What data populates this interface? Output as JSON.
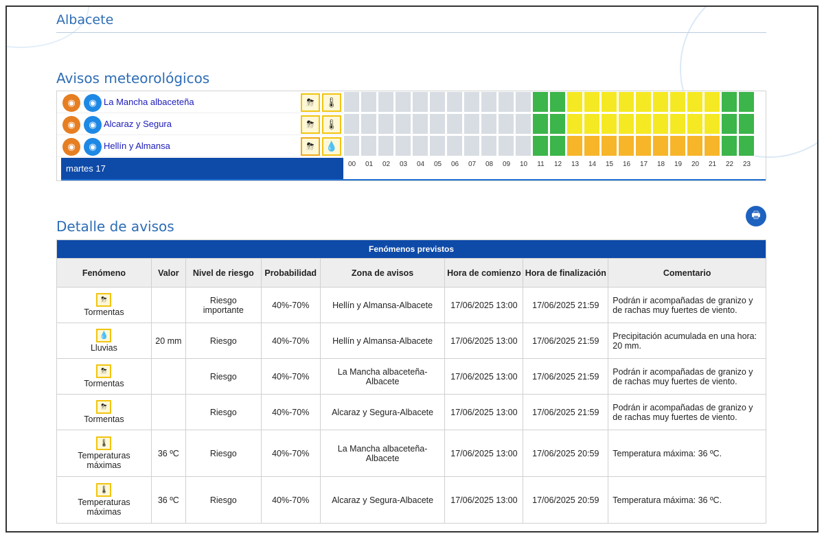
{
  "region_title": "Albacete",
  "warnings_title": "Avisos meteorológicos",
  "zones": [
    {
      "name": "La Mancha albaceteña",
      "icons": [
        "storm-icon",
        "thermometer-icon"
      ],
      "colors": [
        "#d8dde3",
        "#d8dde3",
        "#d8dde3",
        "#d8dde3",
        "#d8dde3",
        "#d8dde3",
        "#d8dde3",
        "#d8dde3",
        "#d8dde3",
        "#d8dde3",
        "#d8dde3",
        "#3cb54a",
        "#3cb54a",
        "#f5e923",
        "#f5e923",
        "#f5e923",
        "#f5e923",
        "#f5e923",
        "#f5e923",
        "#f5e923",
        "#f5e923",
        "#f5e923",
        "#3cb54a",
        "#3cb54a"
      ]
    },
    {
      "name": "Alcaraz y Segura",
      "icons": [
        "storm-icon",
        "thermometer-icon"
      ],
      "colors": [
        "#d8dde3",
        "#d8dde3",
        "#d8dde3",
        "#d8dde3",
        "#d8dde3",
        "#d8dde3",
        "#d8dde3",
        "#d8dde3",
        "#d8dde3",
        "#d8dde3",
        "#d8dde3",
        "#3cb54a",
        "#3cb54a",
        "#f5e923",
        "#f5e923",
        "#f5e923",
        "#f5e923",
        "#f5e923",
        "#f5e923",
        "#f5e923",
        "#f5e923",
        "#f5e923",
        "#3cb54a",
        "#3cb54a"
      ]
    },
    {
      "name": "Hellín y Almansa",
      "icons": [
        "storm-icon",
        "rain-icon"
      ],
      "colors": [
        "#d8dde3",
        "#d8dde3",
        "#d8dde3",
        "#d8dde3",
        "#d8dde3",
        "#d8dde3",
        "#d8dde3",
        "#d8dde3",
        "#d8dde3",
        "#d8dde3",
        "#d8dde3",
        "#3cb54a",
        "#3cb54a",
        "#f7b52a",
        "#f7b52a",
        "#f7b52a",
        "#f7b52a",
        "#f7b52a",
        "#f7b52a",
        "#f7b52a",
        "#f7b52a",
        "#f7b52a",
        "#3cb54a",
        "#3cb54a"
      ]
    }
  ],
  "day_label": "martes 17",
  "hours": [
    "00",
    "01",
    "02",
    "03",
    "04",
    "05",
    "06",
    "07",
    "08",
    "09",
    "10",
    "11",
    "12",
    "13",
    "14",
    "15",
    "16",
    "17",
    "18",
    "19",
    "20",
    "21",
    "22",
    "23"
  ],
  "detail_title": "Detalle de avisos",
  "table": {
    "caption": "Fenómenos previstos",
    "headers": [
      "Fenómeno",
      "Valor",
      "Nivel de riesgo",
      "Probabilidad",
      "Zona de avisos",
      "Hora de comienzo",
      "Hora de finalización",
      "Comentario"
    ],
    "rows": [
      {
        "icon": "storm-icon",
        "fenomeno": "Tormentas",
        "valor": "",
        "nivel": "Riesgo importante",
        "prob": "40%-70%",
        "zona": "Hellín y Almansa-Albacete",
        "inicio": "17/06/2025 13:00",
        "fin": "17/06/2025 21:59",
        "comentario": "Podrán ir acompañadas de granizo y de rachas muy fuertes de viento."
      },
      {
        "icon": "rain-icon",
        "fenomeno": "Lluvias",
        "valor": "20 mm",
        "nivel": "Riesgo",
        "prob": "40%-70%",
        "zona": "Hellín y Almansa-Albacete",
        "inicio": "17/06/2025 13:00",
        "fin": "17/06/2025 21:59",
        "comentario": "Precipitación acumulada en una hora: 20 mm."
      },
      {
        "icon": "storm-icon",
        "fenomeno": "Tormentas",
        "valor": "",
        "nivel": "Riesgo",
        "prob": "40%-70%",
        "zona": "La Mancha albaceteña-Albacete",
        "inicio": "17/06/2025 13:00",
        "fin": "17/06/2025 21:59",
        "comentario": "Podrán ir acompañadas de granizo y de rachas muy fuertes de viento."
      },
      {
        "icon": "storm-icon",
        "fenomeno": "Tormentas",
        "valor": "",
        "nivel": "Riesgo",
        "prob": "40%-70%",
        "zona": "Alcaraz y Segura-Albacete",
        "inicio": "17/06/2025 13:00",
        "fin": "17/06/2025 21:59",
        "comentario": "Podrán ir acompañadas de granizo y de rachas muy fuertes de viento."
      },
      {
        "icon": "thermometer-icon",
        "fenomeno": "Temperaturas máximas",
        "valor": "36 ºC",
        "nivel": "Riesgo",
        "prob": "40%-70%",
        "zona": "La Mancha albaceteña-Albacete",
        "inicio": "17/06/2025 13:00",
        "fin": "17/06/2025 20:59",
        "comentario": "Temperatura máxima: 36 ºC."
      },
      {
        "icon": "thermometer-icon",
        "fenomeno": "Temperaturas máximas",
        "valor": "36 ºC",
        "nivel": "Riesgo",
        "prob": "40%-70%",
        "zona": "Alcaraz y Segura-Albacete",
        "inicio": "17/06/2025 13:00",
        "fin": "17/06/2025 20:59",
        "comentario": "Temperatura máxima: 36 ºC."
      }
    ]
  }
}
